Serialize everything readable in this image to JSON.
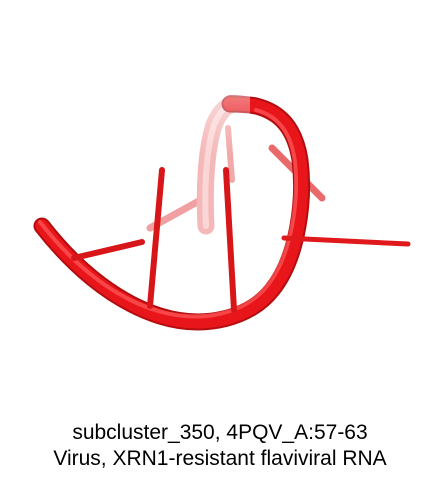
{
  "structure": {
    "style": "cartoon-backbone-with-base-sticks",
    "colors": {
      "backbone": "#e8161b",
      "backbone_highlight": "#ff5a5a",
      "backbone_shadow": "#b40d10",
      "base": "#dd1a1a",
      "base_faded": "#f29a9a"
    }
  },
  "caption": {
    "line1": "subcluster_350, 4PQV_A:57-63",
    "line2": "Virus, XRN1-resistant flaviviral RNA"
  }
}
